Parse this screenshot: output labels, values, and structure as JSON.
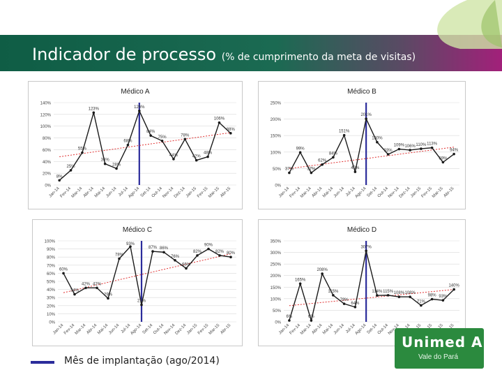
{
  "header": {
    "title": "Indicador de processo",
    "subtitle": "(% de cumprimento da meta de visitas)"
  },
  "legend": {
    "label": "Mês de implantação (ago/2014)"
  },
  "logo": {
    "name": "Unimed A",
    "tagline": "Vale do Pará"
  },
  "colors": {
    "series": "#1a1a1a",
    "trend": "#e03030",
    "marker": "#2b2c9b",
    "grid": "#d9d9d9"
  },
  "chart_data": [
    {
      "type": "line",
      "title": "Médico A",
      "categories": [
        "Jan-14",
        "Fev-14",
        "Mar-14",
        "Abr-14",
        "Mai-14",
        "Jun-14",
        "Jul-14",
        "Ago-14",
        "Set-14",
        "Out-14",
        "Nov-14",
        "Dez-14",
        "Jan-15",
        "Fev-15",
        "Mar-15",
        "Abr-15"
      ],
      "values": [
        8,
        25,
        55,
        123,
        36,
        28,
        68,
        126,
        84,
        75,
        44,
        78,
        42,
        48,
        106,
        88
      ],
      "labels": [
        "8%",
        "25%",
        "55%",
        "123%",
        "36%",
        "28%",
        "68%",
        "126%",
        "84%",
        "75%",
        "44%",
        "78%",
        "42%",
        "48%",
        "106%",
        "88%"
      ],
      "yticks": [
        "0%",
        "20%",
        "40%",
        "60%",
        "80%",
        "100%",
        "120%",
        "140%"
      ],
      "ylim": [
        0,
        140
      ],
      "trend": [
        48,
        89
      ],
      "implantation": "Ago-14"
    },
    {
      "type": "line",
      "title": "Médico B",
      "categories": [
        "Jan-14",
        "Fev-14",
        "Mar-14",
        "Abr-14",
        "Mai-14",
        "Jun-14",
        "Jul-14",
        "Ago-14",
        "Set-14",
        "Out-14",
        "Nov-14",
        "Dez-14",
        "Jan-15",
        "Fev-15",
        "Mar-15",
        "Abr-15"
      ],
      "values": [
        37,
        99,
        37,
        62,
        84,
        151,
        40,
        201,
        130,
        93,
        109,
        106,
        110,
        113,
        69,
        94
      ],
      "labels": [
        "37%",
        "99%",
        "37%",
        "62%",
        "84%",
        "151%",
        "40%",
        "201%",
        "130%",
        "93%",
        "109%",
        "106%",
        "110%",
        "113%",
        "69%",
        "94%"
      ],
      "yticks": [
        "0%",
        "50%",
        "100%",
        "150%",
        "200%",
        "250%"
      ],
      "ylim": [
        0,
        250
      ],
      "trend": [
        50,
        115
      ],
      "implantation": "Ago-14"
    },
    {
      "type": "line",
      "title": "Médico C",
      "categories": [
        "Jan-14",
        "Fev-14",
        "Mar-14",
        "Abr-14",
        "Mai-14",
        "Jun-14",
        "Jul-14",
        "Ago-14",
        "Set-14",
        "Out-14",
        "Nov-14",
        "Dez-14",
        "Jan-15",
        "Fev-15",
        "Mar-15",
        "Abr-15"
      ],
      "values": [
        60,
        34,
        42,
        42,
        29,
        78,
        93,
        21,
        87,
        86,
        76,
        66,
        82,
        90,
        82,
        80
      ],
      "labels": [
        "60%",
        "34%",
        "42%",
        "42%",
        "29%",
        "78%",
        "93%",
        "21%",
        "87%",
        "86%",
        "76%",
        "66%",
        "82%",
        "90%",
        "82%",
        "80%"
      ],
      "yticks": [
        "0%",
        "10%",
        "20%",
        "30%",
        "40%",
        "50%",
        "60%",
        "70%",
        "80%",
        "90%",
        "100%"
      ],
      "ylim": [
        0,
        100
      ],
      "trend": [
        36,
        84
      ],
      "implantation": "Ago-14"
    },
    {
      "type": "line",
      "title": "Médico D",
      "categories": [
        "Jan-14",
        "Fev-14",
        "Mar-14",
        "Abr-14",
        "Mai-14",
        "Jun-14",
        "Jul-14",
        "Ago-14",
        "Set-14",
        "Out-14",
        "Nov-14",
        "Dez-14",
        "Jan-15",
        "Fev-15",
        "Mar-15",
        "Abr-15"
      ],
      "values": [
        6,
        165,
        6,
        208,
        115,
        78,
        64,
        307,
        114,
        115,
        108,
        108,
        71,
        98,
        93,
        140
      ],
      "labels": [
        "6%",
        "165%",
        "6%",
        "208%",
        "115%",
        "78%",
        "64%",
        "307%",
        "114%",
        "115%",
        "108%",
        "108%",
        "71%",
        "98%",
        "93%",
        "140%"
      ],
      "yticks": [
        "0%",
        "50%",
        "100%",
        "150%",
        "200%",
        "250%",
        "300%",
        "350%"
      ],
      "ylim": [
        0,
        350
      ],
      "trend": [
        70,
        140
      ],
      "implantation": "Ago-14"
    }
  ]
}
